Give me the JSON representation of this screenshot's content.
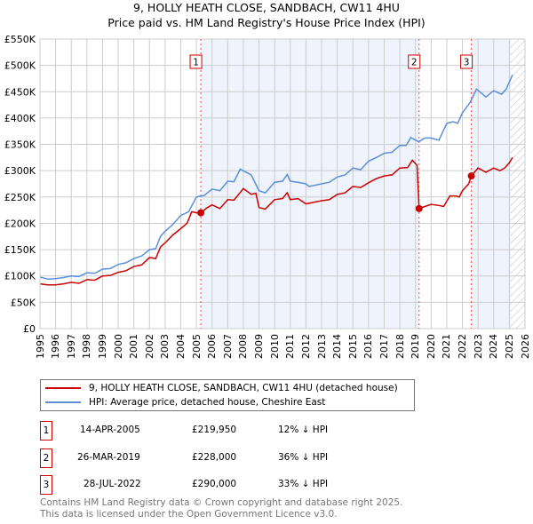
{
  "chart_data": {
    "type": "line",
    "title": "9, HOLLY HEATH CLOSE, SANDBACH, CW11 4HU",
    "subtitle": "Price paid vs. HM Land Registry's House Price Index (HPI)",
    "xlim": [
      1995,
      2026
    ],
    "ylim": [
      0,
      550000
    ],
    "x_ticks": [
      "1995",
      "1996",
      "1997",
      "1998",
      "1999",
      "2000",
      "2001",
      "2002",
      "2003",
      "2004",
      "2005",
      "2006",
      "2007",
      "2008",
      "2009",
      "2010",
      "2011",
      "2012",
      "2013",
      "2014",
      "2015",
      "2016",
      "2017",
      "2018",
      "2019",
      "2020",
      "2021",
      "2022",
      "2023",
      "2024",
      "2025",
      "2026"
    ],
    "y_ticks": [
      {
        "v": 0,
        "label": "£0"
      },
      {
        "v": 50000,
        "label": "£50K"
      },
      {
        "v": 100000,
        "label": "£100K"
      },
      {
        "v": 150000,
        "label": "£150K"
      },
      {
        "v": 200000,
        "label": "£200K"
      },
      {
        "v": 250000,
        "label": "£250K"
      },
      {
        "v": 300000,
        "label": "£300K"
      },
      {
        "v": 350000,
        "label": "£350K"
      },
      {
        "v": 400000,
        "label": "£400K"
      },
      {
        "v": 450000,
        "label": "£450K"
      },
      {
        "v": 500000,
        "label": "£500K"
      },
      {
        "v": 550000,
        "label": "£550K"
      }
    ],
    "grid": true,
    "legend_placement": "below",
    "series": [
      {
        "name": "9, HOLLY HEATH CLOSE, SANDBACH, CW11 4HU (detached house)",
        "color": "#cc0000",
        "points": [
          [
            1995,
            85
          ],
          [
            1995.5,
            83
          ],
          [
            1996,
            83
          ],
          [
            1996.5,
            85
          ],
          [
            1997,
            88
          ],
          [
            1997.5,
            86
          ],
          [
            1998,
            93
          ],
          [
            1998.5,
            92
          ],
          [
            1999,
            100
          ],
          [
            1999.5,
            101
          ],
          [
            2000,
            107
          ],
          [
            2000.5,
            110
          ],
          [
            2001,
            118
          ],
          [
            2001.5,
            121
          ],
          [
            2002,
            135
          ],
          [
            2002.4,
            133
          ],
          [
            2002.7,
            155
          ],
          [
            2003,
            163
          ],
          [
            2003.5,
            178
          ],
          [
            2004,
            190
          ],
          [
            2004.4,
            200
          ],
          [
            2004.7,
            222
          ],
          [
            2005,
            220
          ],
          [
            2005.28,
            219.95
          ],
          [
            2005.7,
            230
          ],
          [
            2006,
            235
          ],
          [
            2006.5,
            228
          ],
          [
            2007,
            245
          ],
          [
            2007.4,
            244
          ],
          [
            2008,
            266
          ],
          [
            2008.5,
            255
          ],
          [
            2008.8,
            257
          ],
          [
            2009,
            230
          ],
          [
            2009.4,
            227
          ],
          [
            2010,
            245
          ],
          [
            2010.5,
            247
          ],
          [
            2010.8,
            258
          ],
          [
            2011,
            245
          ],
          [
            2011.5,
            247
          ],
          [
            2012,
            237
          ],
          [
            2012.5,
            240
          ],
          [
            2013,
            243
          ],
          [
            2013.5,
            245
          ],
          [
            2014,
            255
          ],
          [
            2014.5,
            258
          ],
          [
            2015,
            270
          ],
          [
            2015.5,
            268
          ],
          [
            2016,
            277
          ],
          [
            2016.5,
            285
          ],
          [
            2017,
            290
          ],
          [
            2017.5,
            292
          ],
          [
            2018,
            305
          ],
          [
            2018.5,
            306
          ],
          [
            2018.8,
            320
          ],
          [
            2019.1,
            310
          ],
          [
            2019.23,
            228
          ],
          [
            2019.6,
            232
          ],
          [
            2020,
            236
          ],
          [
            2020.5,
            234
          ],
          [
            2020.8,
            232
          ],
          [
            2021.2,
            252
          ],
          [
            2021.6,
            252
          ],
          [
            2021.8,
            250
          ],
          [
            2022,
            262
          ],
          [
            2022.4,
            275
          ],
          [
            2022.57,
            290
          ],
          [
            2023,
            305
          ],
          [
            2023.5,
            297
          ],
          [
            2024,
            305
          ],
          [
            2024.4,
            300
          ],
          [
            2024.7,
            305
          ],
          [
            2025,
            315
          ],
          [
            2025.2,
            325
          ]
        ]
      },
      {
        "name": "HPI: Average price, detached house, Cheshire East",
        "color": "#5b8fd6",
        "points": [
          [
            1995,
            98
          ],
          [
            1995.5,
            94
          ],
          [
            1996,
            95
          ],
          [
            1996.5,
            97
          ],
          [
            1997,
            100
          ],
          [
            1997.5,
            99
          ],
          [
            1998,
            106
          ],
          [
            1998.5,
            105
          ],
          [
            1999,
            113
          ],
          [
            1999.5,
            114
          ],
          [
            2000,
            122
          ],
          [
            2000.5,
            125
          ],
          [
            2001,
            133
          ],
          [
            2001.5,
            138
          ],
          [
            2002,
            150
          ],
          [
            2002.4,
            152
          ],
          [
            2002.7,
            175
          ],
          [
            2003,
            185
          ],
          [
            2003.5,
            198
          ],
          [
            2004,
            215
          ],
          [
            2004.5,
            222
          ],
          [
            2005,
            250
          ],
          [
            2005.5,
            253
          ],
          [
            2006,
            265
          ],
          [
            2006.5,
            262
          ],
          [
            2007,
            280
          ],
          [
            2007.4,
            279
          ],
          [
            2007.8,
            303
          ],
          [
            2008.5,
            292
          ],
          [
            2009,
            262
          ],
          [
            2009.4,
            258
          ],
          [
            2010,
            278
          ],
          [
            2010.5,
            280
          ],
          [
            2010.8,
            293
          ],
          [
            2011,
            280
          ],
          [
            2011.5,
            278
          ],
          [
            2012,
            275
          ],
          [
            2012.2,
            270
          ],
          [
            2013,
            275
          ],
          [
            2013.5,
            278
          ],
          [
            2014,
            288
          ],
          [
            2014.5,
            292
          ],
          [
            2015,
            305
          ],
          [
            2015.5,
            302
          ],
          [
            2016,
            318
          ],
          [
            2016.5,
            325
          ],
          [
            2017,
            333
          ],
          [
            2017.5,
            335
          ],
          [
            2018,
            348
          ],
          [
            2018.4,
            348
          ],
          [
            2018.7,
            363
          ],
          [
            2019.2,
            355
          ],
          [
            2019.6,
            362
          ],
          [
            2020,
            362
          ],
          [
            2020.5,
            358
          ],
          [
            2021,
            390
          ],
          [
            2021.4,
            393
          ],
          [
            2021.7,
            390
          ],
          [
            2022,
            410
          ],
          [
            2022.5,
            430
          ],
          [
            2022.9,
            455
          ],
          [
            2023.5,
            440
          ],
          [
            2024,
            452
          ],
          [
            2024.5,
            445
          ],
          [
            2024.8,
            455
          ],
          [
            2025.2,
            482
          ]
        ]
      }
    ],
    "sales": [
      {
        "label": "1",
        "x": 2005.28,
        "y": 219.95,
        "date": "14-APR-2005",
        "price": "£219,950",
        "hpi": "12% ↓ HPI"
      },
      {
        "label": "2",
        "x": 2019.23,
        "y": 228,
        "date": "26-MAR-2019",
        "price": "£228,000",
        "hpi": "36% ↓ HPI"
      },
      {
        "label": "3",
        "x": 2022.57,
        "y": 290,
        "date": "28-JUL-2022",
        "price": "£290,000",
        "hpi": "33% ↓ HPI"
      }
    ],
    "shaded_ranges": [
      [
        2005.28,
        2019.23
      ],
      [
        2022.57,
        2025.1
      ]
    ],
    "forecast_start": 2025.1,
    "y_units": "thousands GBP"
  },
  "footer": {
    "line1": "Contains HM Land Registry data © Crown copyright and database right 2025.",
    "line2": "This data is licensed under the Open Government Licence v3.0."
  }
}
